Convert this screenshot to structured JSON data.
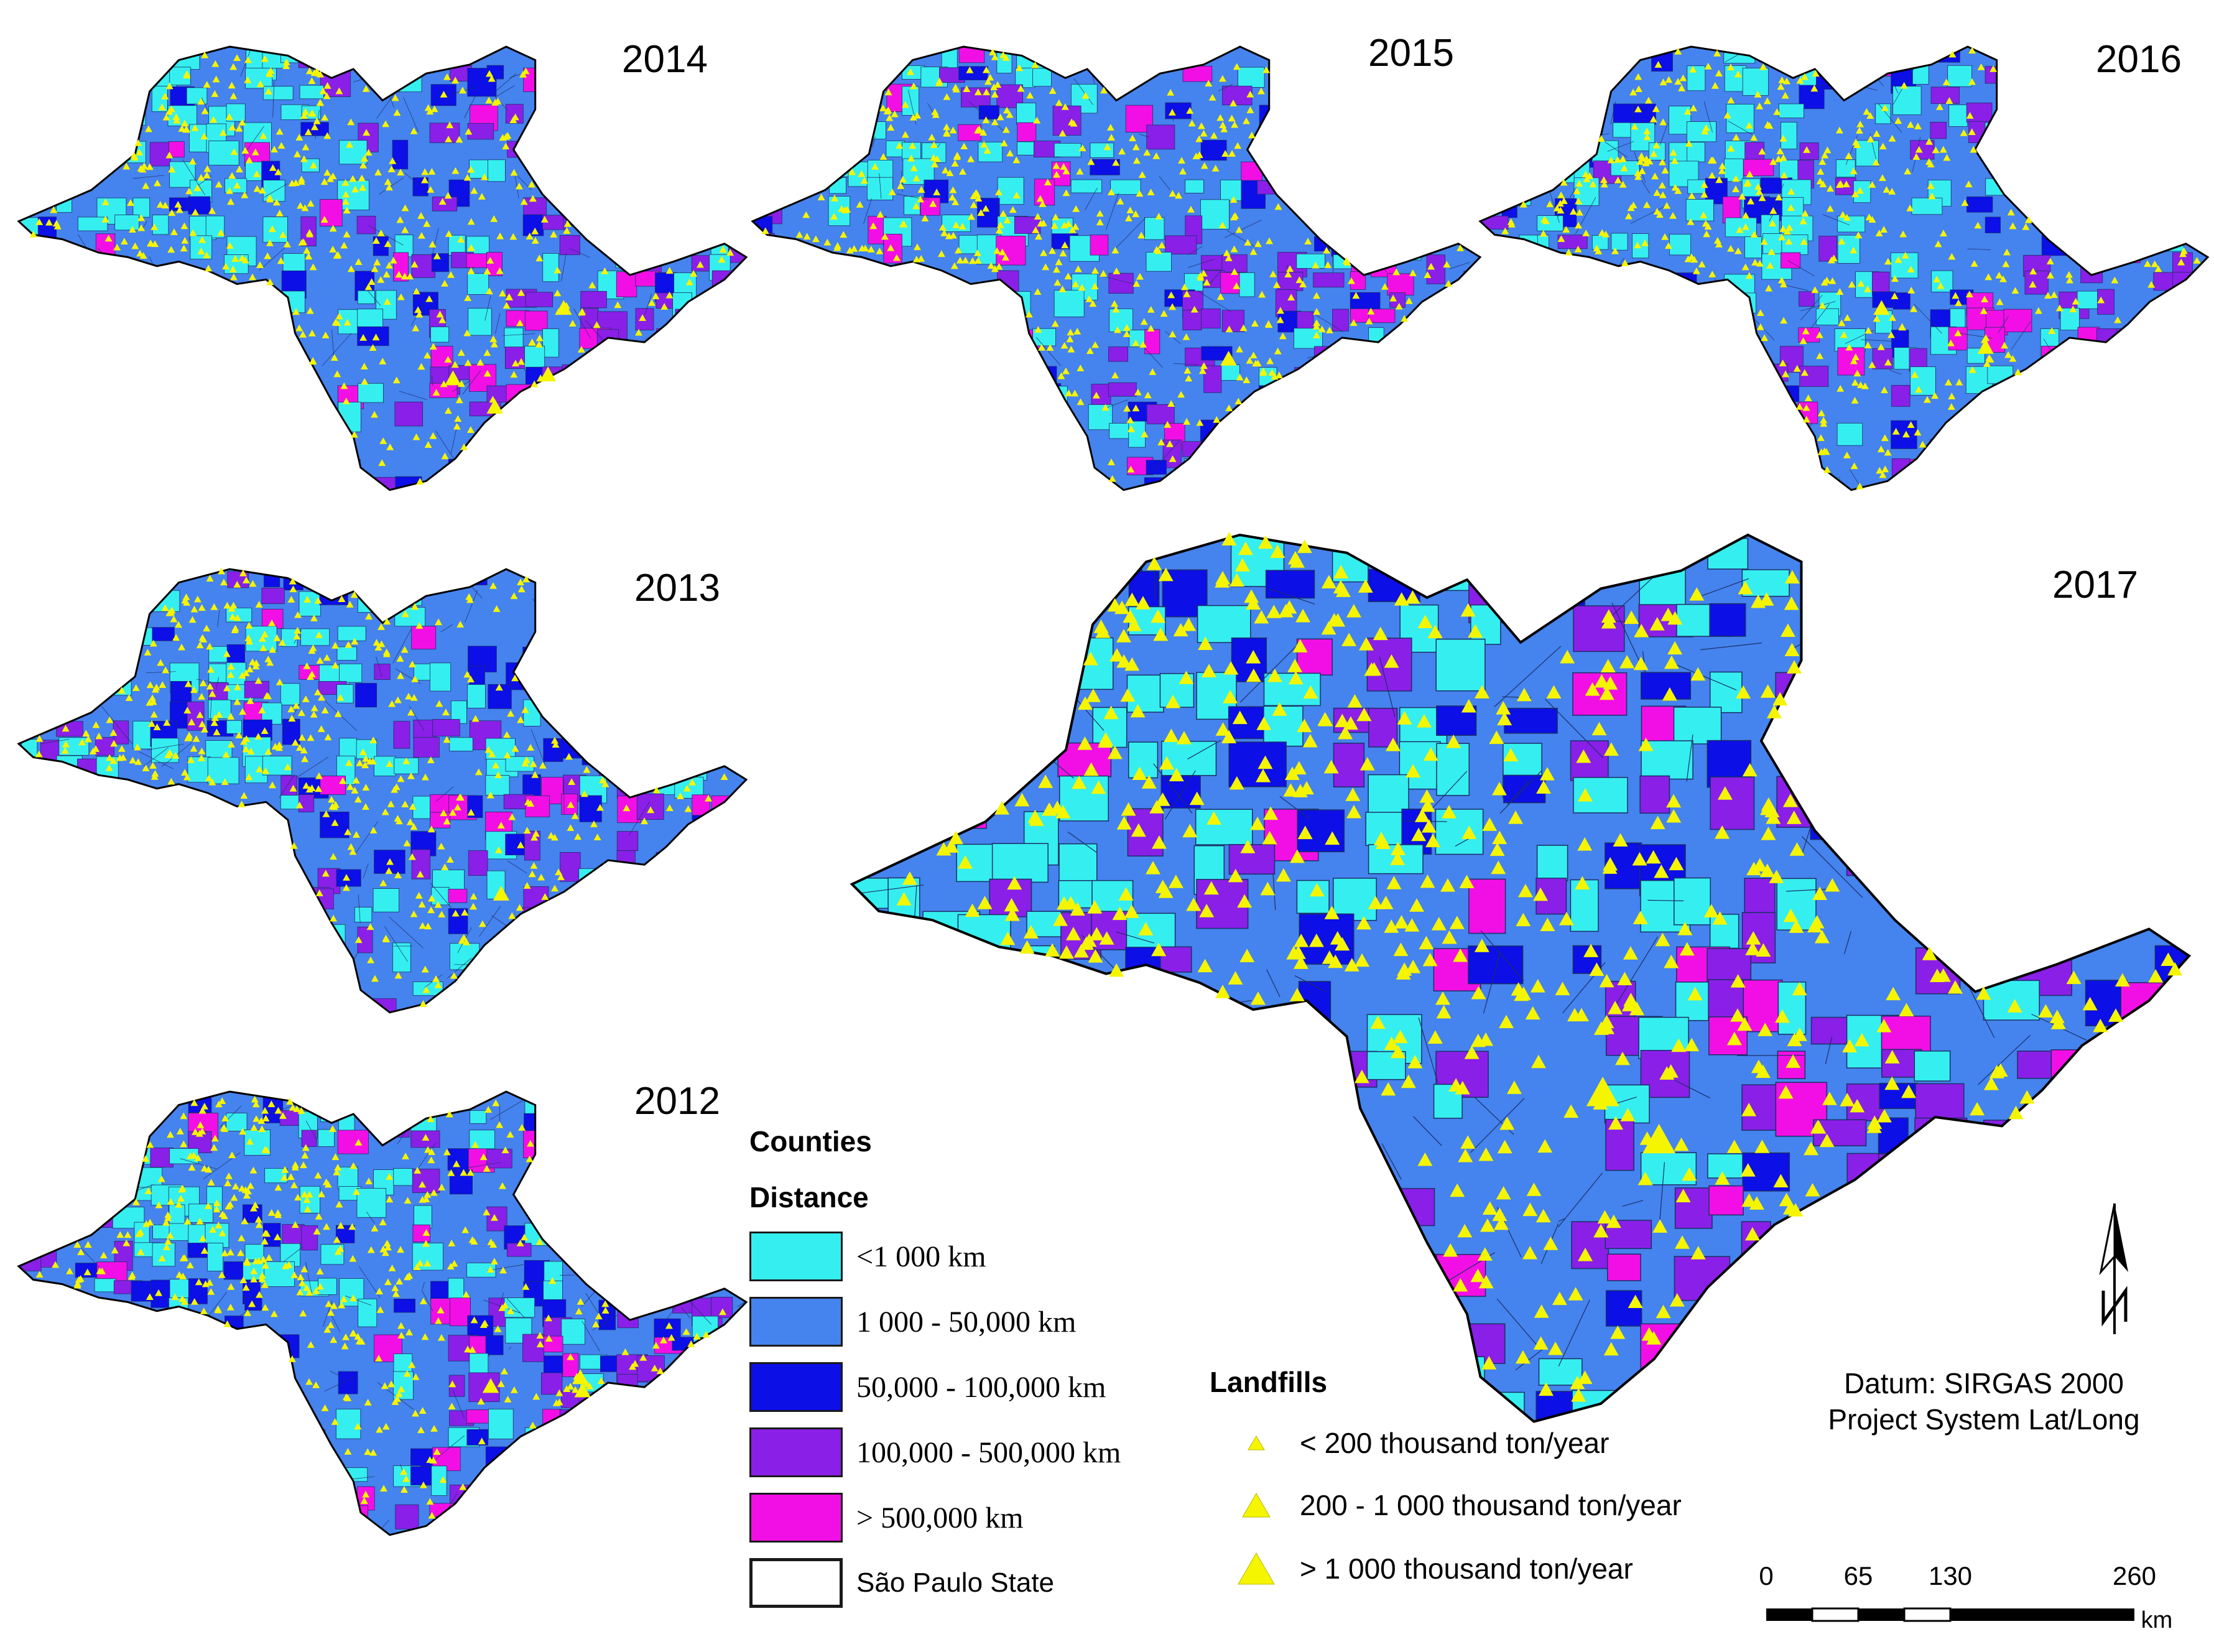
{
  "panels": [
    {
      "year": "2014"
    },
    {
      "year": "2015"
    },
    {
      "year": "2016"
    },
    {
      "year": "2013"
    },
    {
      "year": "2012"
    },
    {
      "year": "2017"
    }
  ],
  "legend": {
    "counties_title": "Counties",
    "distance_title": "Distance",
    "classes": [
      {
        "label": "<1 000 km",
        "color": "#35eef0"
      },
      {
        "label": "1 000 -  50,000 km",
        "color": "#4583ee"
      },
      {
        "label": "50,000 -  100,000 km",
        "color": "#0c0fe6"
      },
      {
        "label": "100,000 -  500,000 km",
        "color": "#8a1fe8"
      },
      {
        "label": ">  500,000 km",
        "color": "#f20fe6"
      }
    ],
    "state_label": "São Paulo State"
  },
  "landfills": {
    "title": "Landfills",
    "color": "#f5f500",
    "items": [
      {
        "label": "< 200 thousand ton/year"
      },
      {
        "label": "200 - 1 000 thousand ton/year"
      },
      {
        "label": "> 1 000 thousand ton/year"
      }
    ]
  },
  "datum": {
    "line1": "Datum: SIRGAS 2000",
    "line2": "Project System Lat/Long"
  },
  "scale": {
    "ticks": [
      "0",
      "65",
      "130",
      "260"
    ],
    "unit": "km"
  }
}
